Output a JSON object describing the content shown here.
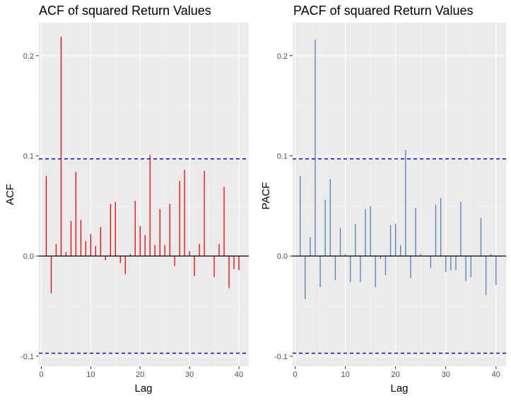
{
  "chart_data": [
    {
      "type": "bar",
      "style": "vertical-segments",
      "title": "ACF of squared Return Values",
      "xlabel": "Lag",
      "ylabel": "ACF",
      "xlim": [
        -0.5,
        42
      ],
      "ylim": [
        -0.11,
        0.233
      ],
      "xticks": [
        0,
        10,
        20,
        30,
        40
      ],
      "yticks": [
        -0.1,
        0.0,
        0.1,
        0.2
      ],
      "ytick_labels": [
        "-0.1",
        "0.0",
        "0.1",
        "0.2"
      ],
      "grid": true,
      "legend": "none",
      "bar_color": "#ff0000",
      "confidence_lines": [
        0.097,
        -0.097
      ],
      "confidence_color": "#0000cc",
      "x": [
        1,
        2,
        3,
        4,
        5,
        6,
        7,
        8,
        9,
        10,
        11,
        12,
        13,
        14,
        15,
        16,
        17,
        18,
        19,
        20,
        21,
        22,
        23,
        24,
        25,
        26,
        27,
        28,
        29,
        30,
        31,
        32,
        33,
        34,
        35,
        36,
        37,
        38,
        39,
        40
      ],
      "values": [
        0.08,
        -0.037,
        0.012,
        0.219,
        0.004,
        0.035,
        0.084,
        0.036,
        0.015,
        0.022,
        0.01,
        0.029,
        -0.004,
        0.052,
        0.054,
        -0.007,
        -0.018,
        0.002,
        0.055,
        0.03,
        0.021,
        0.101,
        0.011,
        0.047,
        0.011,
        0.052,
        -0.01,
        0.075,
        0.086,
        0.005,
        -0.02,
        0.012,
        0.085,
        0.0,
        -0.021,
        0.012,
        0.069,
        -0.032,
        -0.013,
        -0.014
      ]
    },
    {
      "type": "bar",
      "style": "vertical-segments",
      "title": "PACF of squared Return Values",
      "xlabel": "Lag",
      "ylabel": "PACF",
      "xlim": [
        -0.5,
        42
      ],
      "ylim": [
        -0.11,
        0.233
      ],
      "xticks": [
        0,
        10,
        20,
        30,
        40
      ],
      "yticks": [
        -0.1,
        0.0,
        0.1,
        0.2
      ],
      "ytick_labels": [
        "-0.1",
        "0.0",
        "0.1",
        "0.2"
      ],
      "grid": true,
      "legend": "none",
      "bar_color": "#4f81b8",
      "confidence_lines": [
        0.097,
        -0.097
      ],
      "confidence_color": "#0000cc",
      "x": [
        1,
        2,
        3,
        4,
        5,
        6,
        7,
        8,
        9,
        10,
        11,
        12,
        13,
        14,
        15,
        16,
        17,
        18,
        19,
        20,
        21,
        22,
        23,
        24,
        25,
        26,
        27,
        28,
        29,
        30,
        31,
        32,
        33,
        34,
        35,
        36,
        37,
        38,
        39,
        40
      ],
      "values": [
        0.08,
        -0.043,
        0.019,
        0.216,
        -0.031,
        0.056,
        0.077,
        -0.024,
        0.028,
        0.002,
        -0.026,
        0.032,
        -0.026,
        0.047,
        0.05,
        -0.031,
        -0.003,
        -0.019,
        0.031,
        0.032,
        0.011,
        0.106,
        -0.022,
        0.048,
        0.002,
        0.0,
        -0.012,
        0.051,
        0.058,
        -0.016,
        -0.014,
        -0.014,
        0.054,
        -0.025,
        -0.021,
        0.0,
        0.038,
        -0.039,
        0.002,
        -0.029
      ]
    }
  ]
}
